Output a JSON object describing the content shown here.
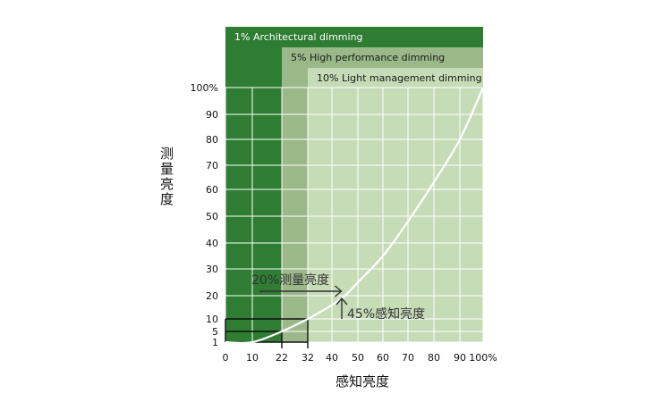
{
  "chart_data": {
    "type": "line",
    "title": "",
    "xlabel": "感知亮度",
    "ylabel": "测量亮度",
    "x_ticks": [
      "0",
      "10",
      "22",
      "32",
      "40",
      "50",
      "60",
      "70",
      "80",
      "90",
      "100%"
    ],
    "y_ticks": [
      "1",
      "5",
      "10",
      "20",
      "30",
      "40",
      "50",
      "60",
      "70",
      "80",
      "90",
      "100%"
    ],
    "y_scale": "perceptual",
    "grid": true,
    "series": [
      {
        "values": [
          {
            "x": 0,
            "y": 0
          },
          {
            "x": 10,
            "y": 1
          },
          {
            "x": 22,
            "y": 5
          },
          {
            "x": 32,
            "y": 10
          },
          {
            "x": 40,
            "y": 16
          },
          {
            "x": 45,
            "y": 20
          },
          {
            "x": 50,
            "y": 25
          },
          {
            "x": 60,
            "y": 35
          },
          {
            "x": 70,
            "y": 48
          },
          {
            "x": 80,
            "y": 63
          },
          {
            "x": 90,
            "y": 80
          },
          {
            "x": 100,
            "y": 100
          }
        ]
      }
    ],
    "bands": [
      {
        "label": "1% Architectural dimming",
        "x_start": 0,
        "x_end": 22,
        "color": "#2e7d32",
        "label_color": "#ffffff"
      },
      {
        "label": "5% High performance dimming",
        "x_start": 22,
        "x_end": 32,
        "color": "#9bb889",
        "label_color": "#1a1a1a"
      },
      {
        "label": "10% Light management dimming",
        "x_start": 32,
        "x_end": 100,
        "color": "#c5dcb7",
        "label_color": "#1a1a1a"
      }
    ],
    "reference_lines": [
      {
        "x": 22,
        "y": 5
      },
      {
        "x": 32,
        "y": 10
      }
    ],
    "annotations": [
      {
        "text": "20%测量亮度",
        "x": 45,
        "y": 20,
        "arrow": "right"
      },
      {
        "text": "45%感知亮度",
        "x": 45,
        "y": 20,
        "arrow": "up"
      }
    ]
  }
}
